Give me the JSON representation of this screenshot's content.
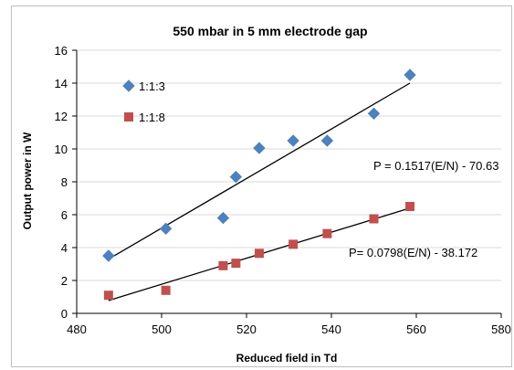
{
  "chart_data": {
    "type": "scatter",
    "title": "550 mbar in 5 mm electrode  gap",
    "xlabel": "Reduced field in Td",
    "ylabel": "Output power in  W",
    "xlim": [
      480,
      580
    ],
    "ylim": [
      0,
      16
    ],
    "xticks": [
      480,
      500,
      520,
      540,
      560,
      580
    ],
    "yticks": [
      0,
      2,
      4,
      6,
      8,
      10,
      12,
      14,
      16
    ],
    "legend_position": "top-left",
    "series": [
      {
        "name": "1:1:3",
        "color": "#4f81bd",
        "marker": "diamond",
        "x": [
          487.5,
          501,
          514.5,
          517.5,
          523,
          531,
          539,
          550,
          558.5
        ],
        "y": [
          3.5,
          5.15,
          5.8,
          8.3,
          10.05,
          10.5,
          10.5,
          12.15,
          14.5
        ],
        "trendline": {
          "x": [
            487.5,
            558.5
          ],
          "y": [
            3.3,
            14.0
          ]
        },
        "equation": "P = 0.1517(E/N) - 70.63"
      },
      {
        "name": "1:1:8",
        "color": "#c0504d",
        "marker": "square",
        "x": [
          487.5,
          501,
          514.5,
          517.5,
          523,
          531,
          539,
          550,
          558.5
        ],
        "y": [
          1.1,
          1.4,
          2.9,
          3.05,
          3.65,
          4.2,
          4.85,
          5.75,
          6.5
        ],
        "trendline": {
          "x": [
            487.5,
            558.5
          ],
          "y": [
            0.78,
            6.4
          ]
        },
        "equation": "P= 0.0798(E/N) - 38.172"
      }
    ]
  }
}
